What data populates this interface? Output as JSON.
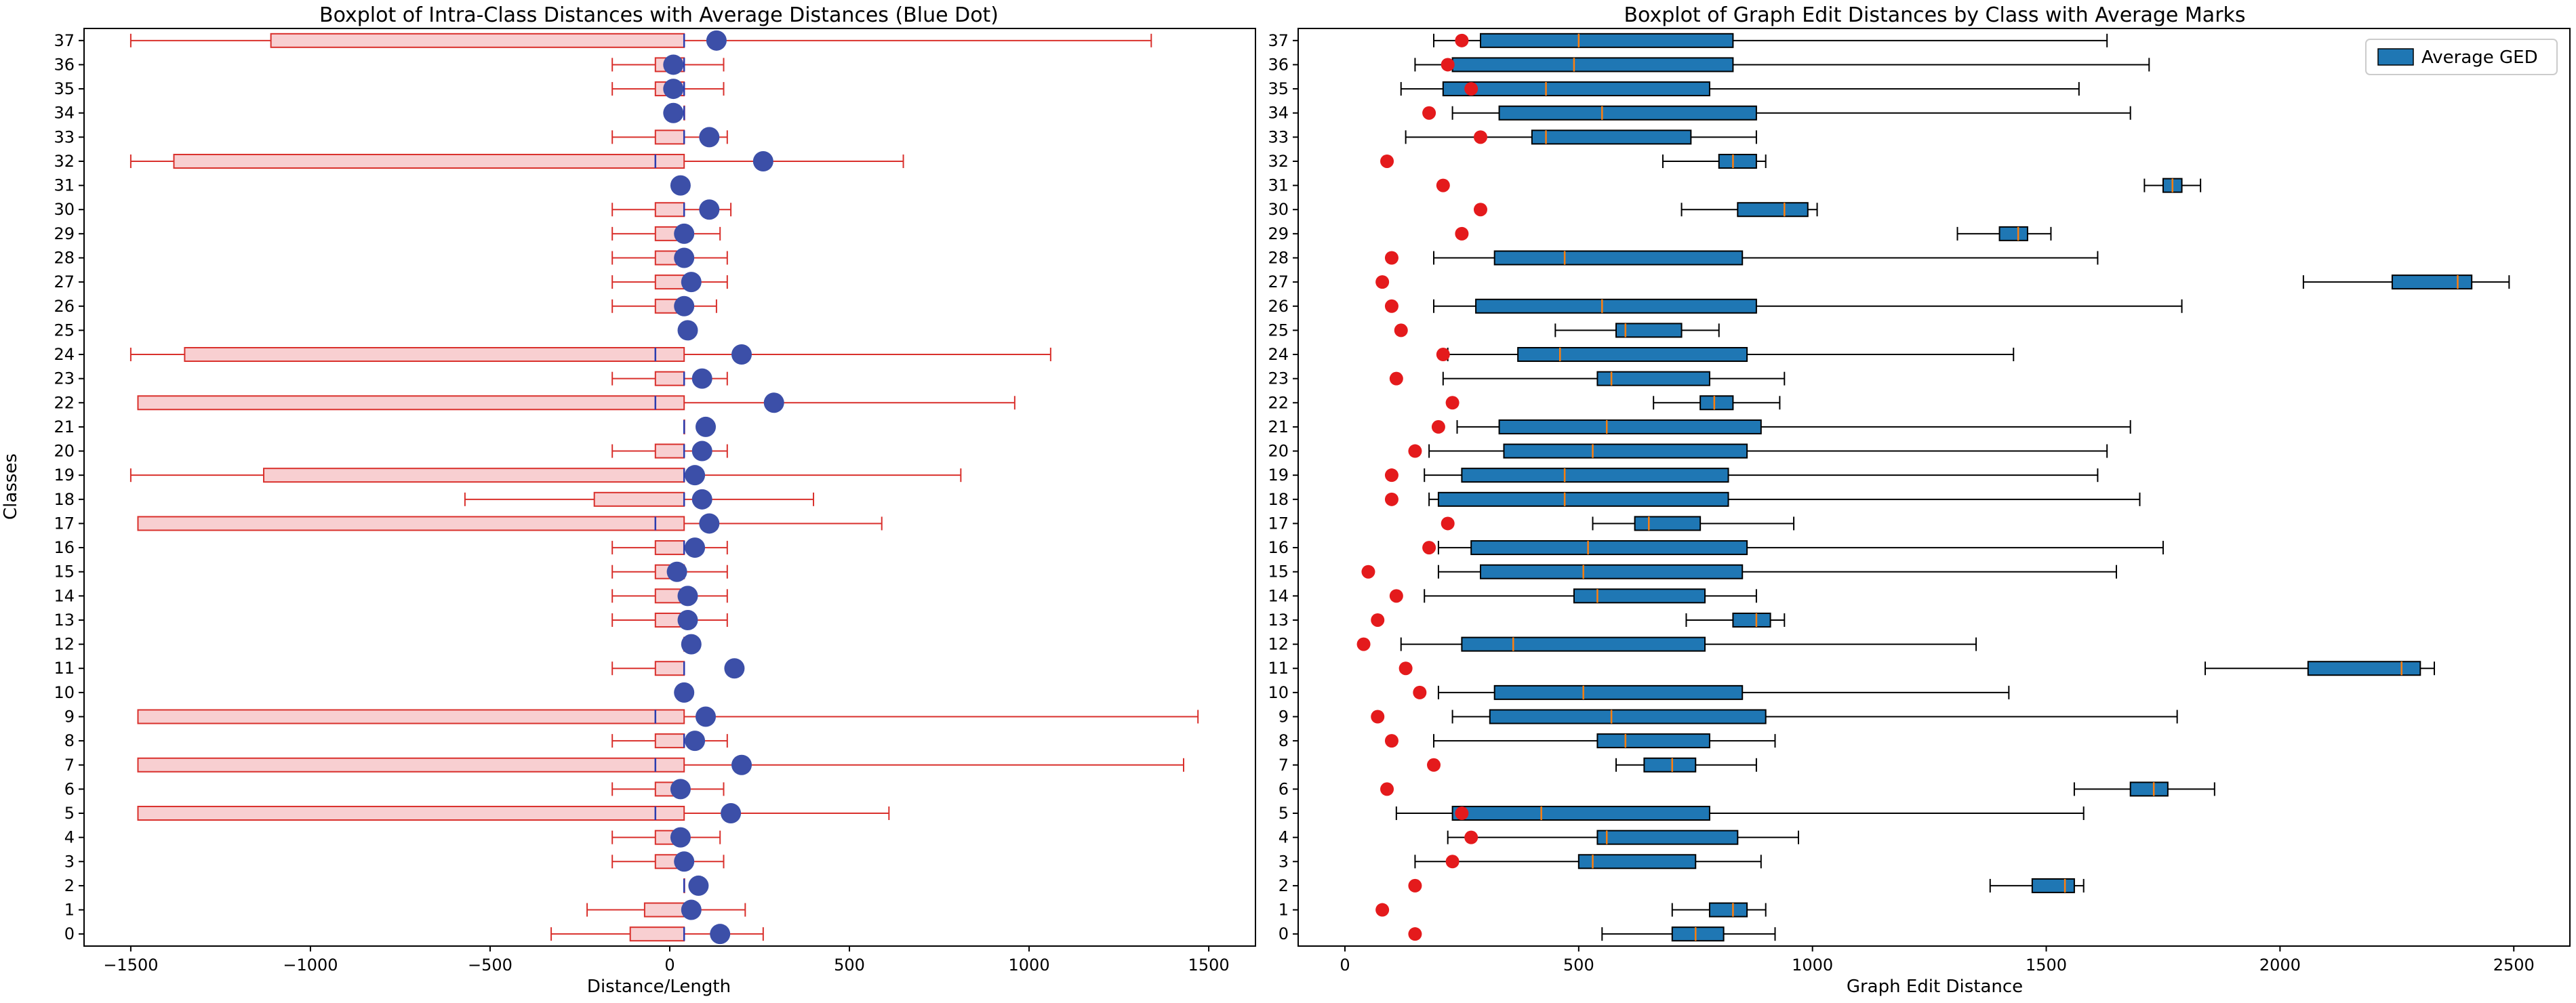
{
  "chart_data": [
    {
      "type": "boxplot",
      "title": "Boxplot of Intra-Class Distances with Average Distances (Blue Dot)",
      "xlabel": "Distance/Length",
      "ylabel": "Classes",
      "xlim": [
        -1630,
        1630
      ],
      "xticks": [
        -1500,
        -1000,
        -500,
        0,
        500,
        1000,
        1500
      ],
      "xtick_labels": [
        "−1500",
        "−1000",
        "−500",
        "0",
        "500",
        "1000",
        "1500"
      ],
      "colors": {
        "box_fill": "#f8cfd1",
        "box_edge": "#d9302c",
        "whisker": "#d9302c",
        "median": "#2b3db0",
        "mean_dot": "#3c4fa8"
      },
      "classes": [
        {
          "label": "0",
          "wlo": -330,
          "q1": -110,
          "median": 40,
          "q3": 40,
          "whi": 260,
          "mean": 140
        },
        {
          "label": "1",
          "wlo": -230,
          "q1": -70,
          "median": 40,
          "q3": 40,
          "whi": 210,
          "mean": 60
        },
        {
          "label": "2",
          "wlo": 40,
          "q1": 40,
          "median": 40,
          "q3": 40,
          "whi": 40,
          "mean": 80
        },
        {
          "label": "3",
          "wlo": -160,
          "q1": -40,
          "median": 40,
          "q3": 40,
          "whi": 150,
          "mean": 40
        },
        {
          "label": "4",
          "wlo": -160,
          "q1": -40,
          "median": 40,
          "q3": 40,
          "whi": 140,
          "mean": 30
        },
        {
          "label": "5",
          "wlo": -1480,
          "q1": -1480,
          "median": -40,
          "q3": 40,
          "whi": 610,
          "mean": 170
        },
        {
          "label": "6",
          "wlo": -160,
          "q1": -40,
          "median": 40,
          "q3": 40,
          "whi": 150,
          "mean": 30
        },
        {
          "label": "7",
          "wlo": -1480,
          "q1": -1480,
          "median": -40,
          "q3": 40,
          "whi": 1430,
          "mean": 200
        },
        {
          "label": "8",
          "wlo": -160,
          "q1": -40,
          "median": 40,
          "q3": 40,
          "whi": 160,
          "mean": 70
        },
        {
          "label": "9",
          "wlo": -1480,
          "q1": -1480,
          "median": -40,
          "q3": 40,
          "whi": 1470,
          "mean": 100
        },
        {
          "label": "10",
          "wlo": 40,
          "q1": 40,
          "median": 40,
          "q3": 40,
          "whi": 40,
          "mean": 40
        },
        {
          "label": "11",
          "wlo": -160,
          "q1": -40,
          "median": 40,
          "q3": 40,
          "whi": 40,
          "mean": 180
        },
        {
          "label": "12",
          "wlo": 40,
          "q1": 40,
          "median": 40,
          "q3": 40,
          "whi": 40,
          "mean": 60
        },
        {
          "label": "13",
          "wlo": -160,
          "q1": -40,
          "median": 40,
          "q3": 40,
          "whi": 160,
          "mean": 50
        },
        {
          "label": "14",
          "wlo": -160,
          "q1": -40,
          "median": 40,
          "q3": 40,
          "whi": 160,
          "mean": 50
        },
        {
          "label": "15",
          "wlo": -160,
          "q1": -40,
          "median": 40,
          "q3": 40,
          "whi": 160,
          "mean": 20
        },
        {
          "label": "16",
          "wlo": -160,
          "q1": -40,
          "median": 40,
          "q3": 40,
          "whi": 160,
          "mean": 70
        },
        {
          "label": "17",
          "wlo": -1480,
          "q1": -1480,
          "median": -40,
          "q3": 40,
          "whi": 590,
          "mean": 110
        },
        {
          "label": "18",
          "wlo": -570,
          "q1": -210,
          "median": 40,
          "q3": 40,
          "whi": 400,
          "mean": 90
        },
        {
          "label": "19",
          "wlo": -1500,
          "q1": -1130,
          "median": 40,
          "q3": 40,
          "whi": 810,
          "mean": 70
        },
        {
          "label": "20",
          "wlo": -160,
          "q1": -40,
          "median": 40,
          "q3": 40,
          "whi": 160,
          "mean": 90
        },
        {
          "label": "21",
          "wlo": 40,
          "q1": 40,
          "median": 40,
          "q3": 40,
          "whi": 40,
          "mean": 100
        },
        {
          "label": "22",
          "wlo": -1480,
          "q1": -1480,
          "median": -40,
          "q3": 40,
          "whi": 960,
          "mean": 290
        },
        {
          "label": "23",
          "wlo": -160,
          "q1": -40,
          "median": 40,
          "q3": 40,
          "whi": 160,
          "mean": 90
        },
        {
          "label": "24",
          "wlo": -1500,
          "q1": -1350,
          "median": -40,
          "q3": 40,
          "whi": 1060,
          "mean": 200
        },
        {
          "label": "25",
          "wlo": 40,
          "q1": 40,
          "median": 40,
          "q3": 40,
          "whi": 40,
          "mean": 50
        },
        {
          "label": "26",
          "wlo": -160,
          "q1": -40,
          "median": 40,
          "q3": 40,
          "whi": 130,
          "mean": 40
        },
        {
          "label": "27",
          "wlo": -160,
          "q1": -40,
          "median": 40,
          "q3": 40,
          "whi": 160,
          "mean": 60
        },
        {
          "label": "28",
          "wlo": -160,
          "q1": -40,
          "median": 40,
          "q3": 40,
          "whi": 160,
          "mean": 40
        },
        {
          "label": "29",
          "wlo": -160,
          "q1": -40,
          "median": 40,
          "q3": 40,
          "whi": 140,
          "mean": 40
        },
        {
          "label": "30",
          "wlo": -160,
          "q1": -40,
          "median": 40,
          "q3": 40,
          "whi": 170,
          "mean": 110
        },
        {
          "label": "31",
          "wlo": 40,
          "q1": 40,
          "median": 40,
          "q3": 40,
          "whi": 40,
          "mean": 30
        },
        {
          "label": "32",
          "wlo": -1500,
          "q1": -1380,
          "median": -40,
          "q3": 40,
          "whi": 650,
          "mean": 260
        },
        {
          "label": "33",
          "wlo": -160,
          "q1": -40,
          "median": 40,
          "q3": 40,
          "whi": 160,
          "mean": 110
        },
        {
          "label": "34",
          "wlo": 40,
          "q1": 40,
          "median": 40,
          "q3": 40,
          "whi": 40,
          "mean": 10
        },
        {
          "label": "35",
          "wlo": -160,
          "q1": -40,
          "median": 40,
          "q3": 40,
          "whi": 150,
          "mean": 10
        },
        {
          "label": "36",
          "wlo": -160,
          "q1": -40,
          "median": 40,
          "q3": 40,
          "whi": 150,
          "mean": 10
        },
        {
          "label": "37",
          "wlo": -1500,
          "q1": -1110,
          "median": 40,
          "q3": 40,
          "whi": 1340,
          "mean": 130
        }
      ]
    },
    {
      "type": "boxplot",
      "title": "Boxplot of Graph Edit Distances by Class with Average Marks",
      "xlabel": "Graph Edit Distance",
      "ylabel": "",
      "xlim": [
        -100,
        2620
      ],
      "xticks": [
        0,
        500,
        1000,
        1500,
        2000,
        2500
      ],
      "xtick_labels": [
        "0",
        "500",
        "1000",
        "1500",
        "2000",
        "2500"
      ],
      "legend": {
        "label": "Average GED",
        "position": "top-right"
      },
      "colors": {
        "box_fill": "#1f77b4",
        "box_edge": "#000000",
        "whisker": "#000000",
        "median": "#ff7f0e",
        "mean_dot": "#e41a1c"
      },
      "classes": [
        {
          "label": "0",
          "wlo": 550,
          "q1": 700,
          "median": 750,
          "q3": 810,
          "whi": 920,
          "mean": 150
        },
        {
          "label": "1",
          "wlo": 700,
          "q1": 780,
          "median": 830,
          "q3": 860,
          "whi": 900,
          "mean": 80
        },
        {
          "label": "2",
          "wlo": 1380,
          "q1": 1470,
          "median": 1540,
          "q3": 1560,
          "whi": 1580,
          "mean": 150
        },
        {
          "label": "3",
          "wlo": 150,
          "q1": 500,
          "median": 530,
          "q3": 750,
          "whi": 890,
          "mean": 230
        },
        {
          "label": "4",
          "wlo": 220,
          "q1": 540,
          "median": 560,
          "q3": 840,
          "whi": 970,
          "mean": 270
        },
        {
          "label": "5",
          "wlo": 110,
          "q1": 230,
          "median": 420,
          "q3": 780,
          "whi": 1580,
          "mean": 250
        },
        {
          "label": "6",
          "wlo": 1560,
          "q1": 1680,
          "median": 1730,
          "q3": 1760,
          "whi": 1860,
          "mean": 90
        },
        {
          "label": "7",
          "wlo": 580,
          "q1": 640,
          "median": 700,
          "q3": 750,
          "whi": 880,
          "mean": 190
        },
        {
          "label": "8",
          "wlo": 190,
          "q1": 540,
          "median": 600,
          "q3": 780,
          "whi": 920,
          "mean": 100
        },
        {
          "label": "9",
          "wlo": 230,
          "q1": 310,
          "median": 570,
          "q3": 900,
          "whi": 1780,
          "mean": 70
        },
        {
          "label": "10",
          "wlo": 200,
          "q1": 320,
          "median": 510,
          "q3": 850,
          "whi": 1420,
          "mean": 160
        },
        {
          "label": "11",
          "wlo": 1840,
          "q1": 2060,
          "median": 2260,
          "q3": 2300,
          "whi": 2330,
          "mean": 130
        },
        {
          "label": "12",
          "wlo": 120,
          "q1": 250,
          "median": 360,
          "q3": 770,
          "whi": 1350,
          "mean": 40
        },
        {
          "label": "13",
          "wlo": 730,
          "q1": 830,
          "median": 880,
          "q3": 910,
          "whi": 940,
          "mean": 70
        },
        {
          "label": "14",
          "wlo": 170,
          "q1": 490,
          "median": 540,
          "q3": 770,
          "whi": 880,
          "mean": 110
        },
        {
          "label": "15",
          "wlo": 200,
          "q1": 290,
          "median": 510,
          "q3": 850,
          "whi": 1650,
          "mean": 50
        },
        {
          "label": "16",
          "wlo": 200,
          "q1": 270,
          "median": 520,
          "q3": 860,
          "whi": 1750,
          "mean": 180
        },
        {
          "label": "17",
          "wlo": 530,
          "q1": 620,
          "median": 650,
          "q3": 760,
          "whi": 960,
          "mean": 220
        },
        {
          "label": "18",
          "wlo": 180,
          "q1": 200,
          "median": 470,
          "q3": 820,
          "whi": 1700,
          "mean": 100
        },
        {
          "label": "19",
          "wlo": 170,
          "q1": 250,
          "median": 470,
          "q3": 820,
          "whi": 1610,
          "mean": 100
        },
        {
          "label": "20",
          "wlo": 180,
          "q1": 340,
          "median": 530,
          "q3": 860,
          "whi": 1630,
          "mean": 150
        },
        {
          "label": "21",
          "wlo": 240,
          "q1": 330,
          "median": 560,
          "q3": 890,
          "whi": 1680,
          "mean": 200
        },
        {
          "label": "22",
          "wlo": 660,
          "q1": 760,
          "median": 790,
          "q3": 830,
          "whi": 930,
          "mean": 230
        },
        {
          "label": "23",
          "wlo": 210,
          "q1": 540,
          "median": 570,
          "q3": 780,
          "whi": 940,
          "mean": 110
        },
        {
          "label": "24",
          "wlo": 220,
          "q1": 370,
          "median": 460,
          "q3": 860,
          "whi": 1430,
          "mean": 210
        },
        {
          "label": "25",
          "wlo": 450,
          "q1": 580,
          "median": 600,
          "q3": 720,
          "whi": 800,
          "mean": 120
        },
        {
          "label": "26",
          "wlo": 190,
          "q1": 280,
          "median": 550,
          "q3": 880,
          "whi": 1790,
          "mean": 100
        },
        {
          "label": "27",
          "wlo": 2050,
          "q1": 2240,
          "median": 2380,
          "q3": 2410,
          "whi": 2490,
          "mean": 80
        },
        {
          "label": "28",
          "wlo": 190,
          "q1": 320,
          "median": 470,
          "q3": 850,
          "whi": 1610,
          "mean": 100
        },
        {
          "label": "29",
          "wlo": 1310,
          "q1": 1400,
          "median": 1440,
          "q3": 1460,
          "whi": 1510,
          "mean": 250
        },
        {
          "label": "30",
          "wlo": 720,
          "q1": 840,
          "median": 940,
          "q3": 990,
          "whi": 1010,
          "mean": 290
        },
        {
          "label": "31",
          "wlo": 1710,
          "q1": 1750,
          "median": 1770,
          "q3": 1790,
          "whi": 1830,
          "mean": 210
        },
        {
          "label": "32",
          "wlo": 680,
          "q1": 800,
          "median": 830,
          "q3": 880,
          "whi": 900,
          "mean": 90
        },
        {
          "label": "33",
          "wlo": 130,
          "q1": 400,
          "median": 430,
          "q3": 740,
          "whi": 880,
          "mean": 290
        },
        {
          "label": "34",
          "wlo": 230,
          "q1": 330,
          "median": 550,
          "q3": 880,
          "whi": 1680,
          "mean": 180
        },
        {
          "label": "35",
          "wlo": 120,
          "q1": 210,
          "median": 430,
          "q3": 780,
          "whi": 1570,
          "mean": 270
        },
        {
          "label": "36",
          "wlo": 150,
          "q1": 230,
          "median": 490,
          "q3": 830,
          "whi": 1720,
          "mean": 220
        },
        {
          "label": "37",
          "wlo": 190,
          "q1": 290,
          "median": 500,
          "q3": 830,
          "whi": 1630,
          "mean": 250
        }
      ]
    }
  ]
}
